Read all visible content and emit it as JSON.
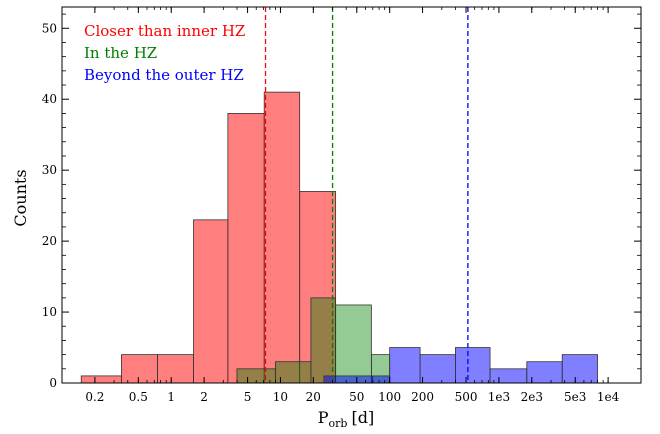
{
  "chart_data": {
    "type": "bar",
    "subtype": "histogram",
    "xscale": "log",
    "xlim": [
      0.1,
      20000
    ],
    "ylim": [
      0,
      53
    ],
    "xlabel": {
      "main": "P",
      "subscript": "orb",
      "unit": "[d]"
    },
    "ylabel": "Counts",
    "x_ticks": [
      {
        "value": 0.2,
        "label": "0.2"
      },
      {
        "value": 0.5,
        "label": "0.5"
      },
      {
        "value": 1,
        "label": "1"
      },
      {
        "value": 2,
        "label": "2"
      },
      {
        "value": 5,
        "label": "5"
      },
      {
        "value": 10,
        "label": "10"
      },
      {
        "value": 20,
        "label": "20"
      },
      {
        "value": 50,
        "label": "50"
      },
      {
        "value": 100,
        "label": "100"
      },
      {
        "value": 200,
        "label": "200"
      },
      {
        "value": 500,
        "label": "500"
      },
      {
        "value": 1000,
        "label": "1e3"
      },
      {
        "value": 2000,
        "label": "2e3"
      },
      {
        "value": 5000,
        "label": "5e3"
      },
      {
        "value": 10000,
        "label": "1e4"
      }
    ],
    "y_ticks": [
      0,
      10,
      20,
      30,
      40,
      50
    ],
    "series": [
      {
        "name": "Closer than inner HZ",
        "color": "#ff0000",
        "fill_opacity": 0.5,
        "bins": [
          {
            "x0": 0.15,
            "x1": 0.35,
            "count": 1
          },
          {
            "x0": 0.35,
            "x1": 0.75,
            "count": 4
          },
          {
            "x0": 0.75,
            "x1": 1.6,
            "count": 4
          },
          {
            "x0": 1.6,
            "x1": 3.3,
            "count": 23
          },
          {
            "x0": 3.3,
            "x1": 7.1,
            "count": 38
          },
          {
            "x0": 7.1,
            "x1": 15,
            "count": 41
          },
          {
            "x0": 15,
            "x1": 32,
            "count": 27
          }
        ]
      },
      {
        "name": "In the HZ",
        "color": "#008000",
        "fill_opacity": 0.42,
        "bins": [
          {
            "x0": 4,
            "x1": 9,
            "count": 2
          },
          {
            "x0": 9,
            "x1": 19,
            "count": 3
          },
          {
            "x0": 19,
            "x1": 32,
            "count": 12
          },
          {
            "x0": 32,
            "x1": 68,
            "count": 11
          },
          {
            "x0": 68,
            "x1": 100,
            "count": 4
          }
        ]
      },
      {
        "name": "Beyond the outer HZ",
        "color": "#0000ff",
        "fill_opacity": 0.5,
        "bins": [
          {
            "x0": 25,
            "x1": 70,
            "count": 1
          },
          {
            "x0": 70,
            "x1": 100,
            "count": 1
          },
          {
            "x0": 100,
            "x1": 190,
            "count": 5
          },
          {
            "x0": 190,
            "x1": 400,
            "count": 4
          },
          {
            "x0": 400,
            "x1": 830,
            "count": 5
          },
          {
            "x0": 830,
            "x1": 1800,
            "count": 2
          },
          {
            "x0": 1800,
            "x1": 3800,
            "count": 3
          },
          {
            "x0": 3800,
            "x1": 8000,
            "count": 4
          }
        ]
      }
    ],
    "vlines": [
      {
        "x": 7.3,
        "color": "#ff0000",
        "style": "dashed"
      },
      {
        "x": 30,
        "color": "#008000",
        "style": "dashed"
      },
      {
        "x": 520,
        "color": "#0000ff",
        "style": "dashed"
      }
    ],
    "legend": {
      "placement": "top-left"
    }
  }
}
